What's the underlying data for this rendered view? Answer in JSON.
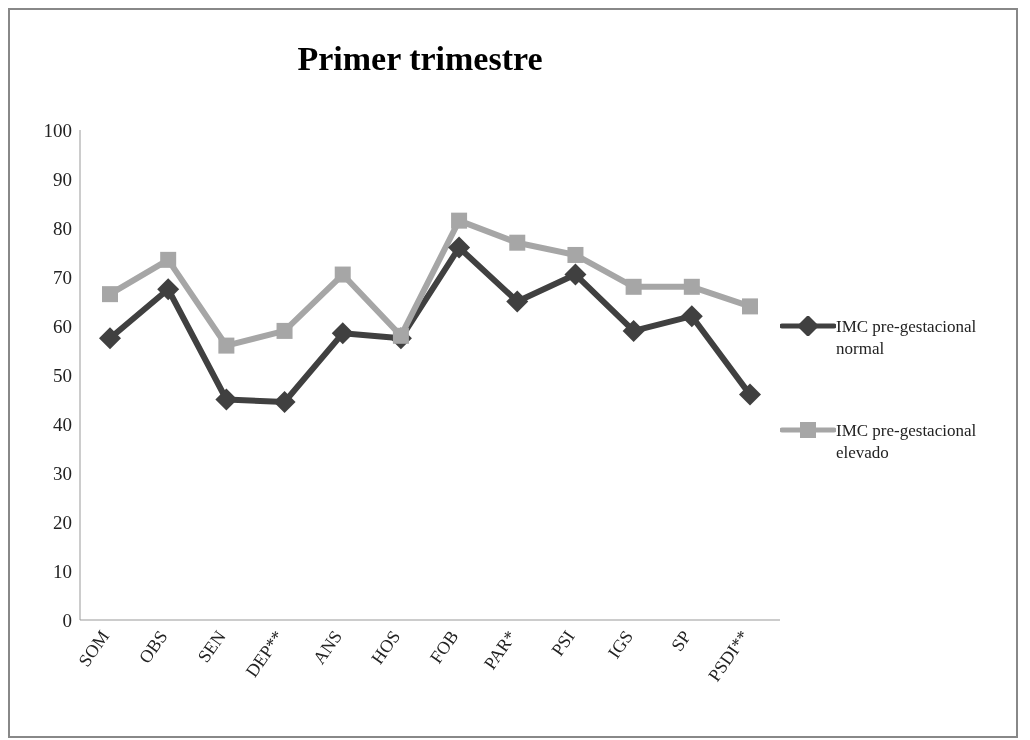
{
  "chart_data": {
    "type": "line",
    "title": "Primer trimestre",
    "categories": [
      "SOM",
      "OBS",
      "SEN",
      "DEP**",
      "ANS",
      "HOS",
      "FOB",
      "PAR*",
      "PSI",
      "IGS",
      "SP",
      "PSDI**"
    ],
    "series": [
      {
        "name": "IMC pre-gestacional normal",
        "color": "#404040",
        "marker": "diamond",
        "values": [
          57.5,
          67.5,
          45,
          44.5,
          58.5,
          57.5,
          76,
          65,
          70.5,
          59,
          62,
          46
        ]
      },
      {
        "name": "IMC pre-gestacional elevado",
        "color": "#a6a6a6",
        "marker": "square",
        "values": [
          66.5,
          73.5,
          56,
          59,
          70.5,
          58,
          81.5,
          77,
          74.5,
          68,
          68,
          64
        ]
      }
    ],
    "ylim": [
      0,
      100
    ],
    "yticks": [
      0,
      10,
      20,
      30,
      40,
      50,
      60,
      70,
      80,
      90,
      100
    ],
    "grid": false,
    "legend": "right"
  }
}
